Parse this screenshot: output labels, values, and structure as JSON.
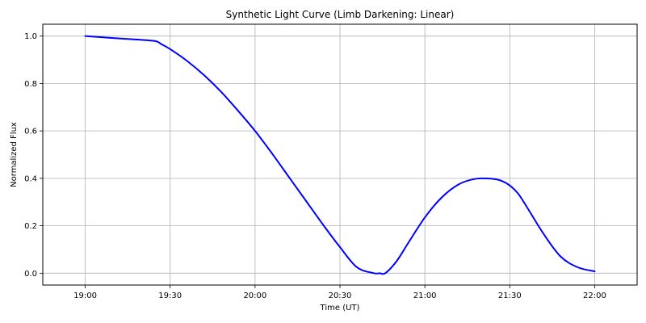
{
  "chart_data": {
    "type": "line",
    "title": "Synthetic Light Curve (Limb Darkening: Linear)",
    "xlabel": "Time (UT)",
    "ylabel": "Normalized Flux",
    "x_unit": "hours (UT)",
    "xlim": [
      18.75,
      22.25
    ],
    "ylim": [
      -0.05,
      1.05
    ],
    "x_ticks": [
      {
        "value": 19.0,
        "label": "19:00"
      },
      {
        "value": 19.5,
        "label": "19:30"
      },
      {
        "value": 20.0,
        "label": "20:00"
      },
      {
        "value": 20.5,
        "label": "20:30"
      },
      {
        "value": 21.0,
        "label": "21:00"
      },
      {
        "value": 21.5,
        "label": "21:30"
      },
      {
        "value": 22.0,
        "label": "22:00"
      }
    ],
    "y_ticks": [
      {
        "value": 0.0,
        "label": "0.0"
      },
      {
        "value": 0.2,
        "label": "0.2"
      },
      {
        "value": 0.4,
        "label": "0.4"
      },
      {
        "value": 0.6,
        "label": "0.6"
      },
      {
        "value": 0.8,
        "label": "0.8"
      },
      {
        "value": 1.0,
        "label": "1.0"
      }
    ],
    "grid": true,
    "line_color": "#0000ff",
    "series": [
      {
        "name": "",
        "x": [
          19.0,
          19.1,
          19.2,
          19.4,
          19.45,
          19.5,
          19.6,
          19.7,
          19.8,
          19.9,
          20.0,
          20.1,
          20.2,
          20.3,
          20.4,
          20.5,
          20.6,
          20.7,
          20.733,
          20.767,
          20.833,
          20.9,
          21.0,
          21.1,
          21.2,
          21.3,
          21.4,
          21.45,
          21.5,
          21.55,
          21.6,
          21.7,
          21.8,
          21.9,
          22.0
        ],
        "y": [
          1.0,
          0.995,
          0.99,
          0.98,
          0.965,
          0.945,
          0.895,
          0.835,
          0.765,
          0.685,
          0.6,
          0.505,
          0.405,
          0.305,
          0.205,
          0.11,
          0.025,
          0.0,
          0.0,
          0.0,
          0.05,
          0.125,
          0.235,
          0.32,
          0.375,
          0.398,
          0.398,
          0.39,
          0.37,
          0.335,
          0.28,
          0.165,
          0.07,
          0.025,
          0.008
        ]
      }
    ]
  }
}
